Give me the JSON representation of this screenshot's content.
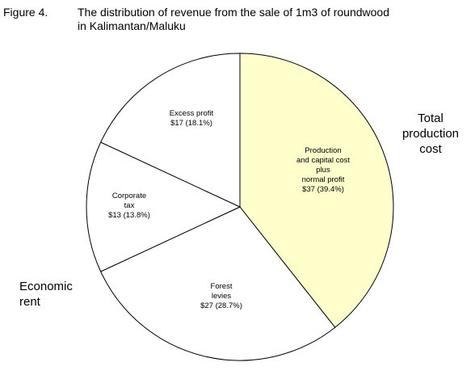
{
  "figure_number": "Figure 4.",
  "title_lines": [
    "The distribution of revenue from the sale of 1m3 of roundwood",
    "in Kalimantan/Maluku"
  ],
  "group_labels": {
    "total_production_cost": [
      "Total",
      "production",
      "cost"
    ],
    "economic_rent": [
      "Economic",
      "rent"
    ]
  },
  "colors": {
    "highlight": "#ffffcc",
    "default": "#ffffff",
    "stroke": "#000000"
  },
  "chart_data": {
    "type": "pie",
    "title": "The distribution of revenue from the sale of 1m3 of roundwood in Kalimantan/Maluku",
    "slices": [
      {
        "category": "Production and capital cost plus normal profit",
        "value": 37,
        "percent": 39.4,
        "label_lines": [
          "Production",
          "and capital cost",
          "plus",
          "normal profit",
          "$37 (39.4%)"
        ],
        "color": "#ffffcc"
      },
      {
        "category": "Forest levies",
        "value": 27,
        "percent": 28.7,
        "label_lines": [
          "Forest",
          "levies",
          "$27 (28.7%)"
        ],
        "color": "#ffffff"
      },
      {
        "category": "Corporate tax",
        "value": 13,
        "percent": 13.8,
        "label_lines": [
          "Corporate",
          "tax",
          "$13 (13.8%)"
        ],
        "color": "#ffffff"
      },
      {
        "category": "Excess profit",
        "value": 17,
        "percent": 18.1,
        "label_lines": [
          "Excess profit",
          "$17 (18.1%)"
        ],
        "color": "#ffffff"
      }
    ]
  }
}
